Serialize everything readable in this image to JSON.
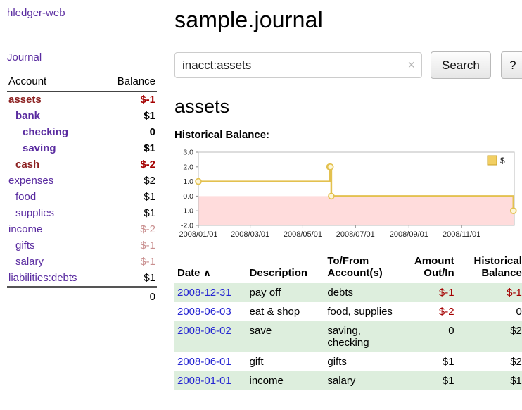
{
  "colors": {
    "purple": "#5a2ca0",
    "blue": "#2626d2",
    "neg": "#a40000",
    "muted": "#c98f8f",
    "selred": "#8b1f1f",
    "row_green": "#ddeedd"
  },
  "sidebar": {
    "app_title": "hledger-web",
    "journal_link": "Journal",
    "headers": {
      "account": "Account",
      "balance": "Balance"
    },
    "rows": [
      {
        "name": "assets",
        "balance": "$-1",
        "indent": 0,
        "emphasis": true,
        "name_style": "name-selneg",
        "balance_style": "bal-neg"
      },
      {
        "name": "bank",
        "balance": "$1",
        "indent": 1,
        "emphasis": true,
        "name_style": "",
        "balance_style": ""
      },
      {
        "name": "checking",
        "balance": "0",
        "indent": 2,
        "emphasis": true,
        "name_style": "",
        "balance_style": ""
      },
      {
        "name": "saving",
        "balance": "$1",
        "indent": 2,
        "emphasis": true,
        "name_style": "",
        "balance_style": ""
      },
      {
        "name": "cash",
        "balance": "$-2",
        "indent": 1,
        "emphasis": true,
        "name_style": "name-selneg",
        "balance_style": "bal-neg"
      },
      {
        "name": "expenses",
        "balance": "$2",
        "indent": 0,
        "emphasis": false,
        "name_style": "",
        "balance_style": ""
      },
      {
        "name": "food",
        "balance": "$1",
        "indent": 1,
        "emphasis": false,
        "name_style": "",
        "balance_style": ""
      },
      {
        "name": "supplies",
        "balance": "$1",
        "indent": 1,
        "emphasis": false,
        "name_style": "",
        "balance_style": ""
      },
      {
        "name": "income",
        "balance": "$-2",
        "indent": 0,
        "emphasis": false,
        "name_style": "",
        "balance_style": "bal-muted"
      },
      {
        "name": "gifts",
        "balance": "$-1",
        "indent": 1,
        "emphasis": false,
        "name_style": "",
        "balance_style": "bal-muted"
      },
      {
        "name": "salary",
        "balance": "$-1",
        "indent": 1,
        "emphasis": false,
        "name_style": "",
        "balance_style": "bal-muted"
      },
      {
        "name": "liabilities:debts",
        "balance": "$1",
        "indent": 0,
        "emphasis": false,
        "name_style": "",
        "balance_style": ""
      }
    ],
    "total": "0"
  },
  "main": {
    "title": "sample.journal",
    "account_heading": "assets",
    "chart_label": "Historical Balance:"
  },
  "search": {
    "value": "inacct:assets",
    "clear_icon": "×",
    "button_label": "Search",
    "help_label": "?"
  },
  "chart_data": {
    "type": "line",
    "step": true,
    "title": "Historical Balance:",
    "series": [
      {
        "name": "$",
        "points": [
          {
            "date": "2008-01-01",
            "value": 1
          },
          {
            "date": "2008-06-01",
            "value": 2
          },
          {
            "date": "2008-06-02",
            "value": 2
          },
          {
            "date": "2008-06-03",
            "value": 0
          },
          {
            "date": "2008-12-31",
            "value": -1
          }
        ]
      }
    ],
    "ylim": [
      -2,
      3
    ],
    "yticks": [
      3.0,
      2.0,
      1.0,
      0.0,
      -1.0,
      -2.0
    ],
    "xticks": [
      "2008/01/01",
      "2008/03/01",
      "2008/05/01",
      "2008/07/01",
      "2008/09/01",
      "2008/11/01"
    ],
    "x_domain": [
      "2008-01-01",
      "2009-01-01"
    ],
    "legend_position": "top-right",
    "grid": false,
    "line_color": "#e3c14f",
    "marker_fill": "#fdf6d8",
    "legend_swatch_fill": "#f2cf63",
    "legend_swatch_border": "#c9a227",
    "negative_region_fill": "#ffdcdc",
    "frame_color": "#bbbbbb"
  },
  "register": {
    "headers": {
      "date": "Date",
      "sort_indicator": "∧",
      "description": "Description",
      "tofrom": "To/From\nAccount(s)",
      "amount": "Amount\nOut/In",
      "balance": "Historical\nBalance"
    },
    "rows": [
      {
        "date": "2008-12-31",
        "description": "pay off",
        "accounts": "debts",
        "amount": "$-1",
        "amount_negative": true,
        "balance": "$-1",
        "balance_negative": true
      },
      {
        "date": "2008-06-03",
        "description": "eat & shop",
        "accounts": "food, supplies",
        "amount": "$-2",
        "amount_negative": true,
        "balance": "0",
        "balance_negative": false
      },
      {
        "date": "2008-06-02",
        "description": "save",
        "accounts": "saving, checking",
        "amount": "0",
        "amount_negative": false,
        "balance": "$2",
        "balance_negative": false
      },
      {
        "date": "2008-06-01",
        "description": "gift",
        "accounts": "gifts",
        "amount": "$1",
        "amount_negative": false,
        "balance": "$2",
        "balance_negative": false
      },
      {
        "date": "2008-01-01",
        "description": "income",
        "accounts": "salary",
        "amount": "$1",
        "amount_negative": false,
        "balance": "$1",
        "balance_negative": false
      }
    ]
  }
}
